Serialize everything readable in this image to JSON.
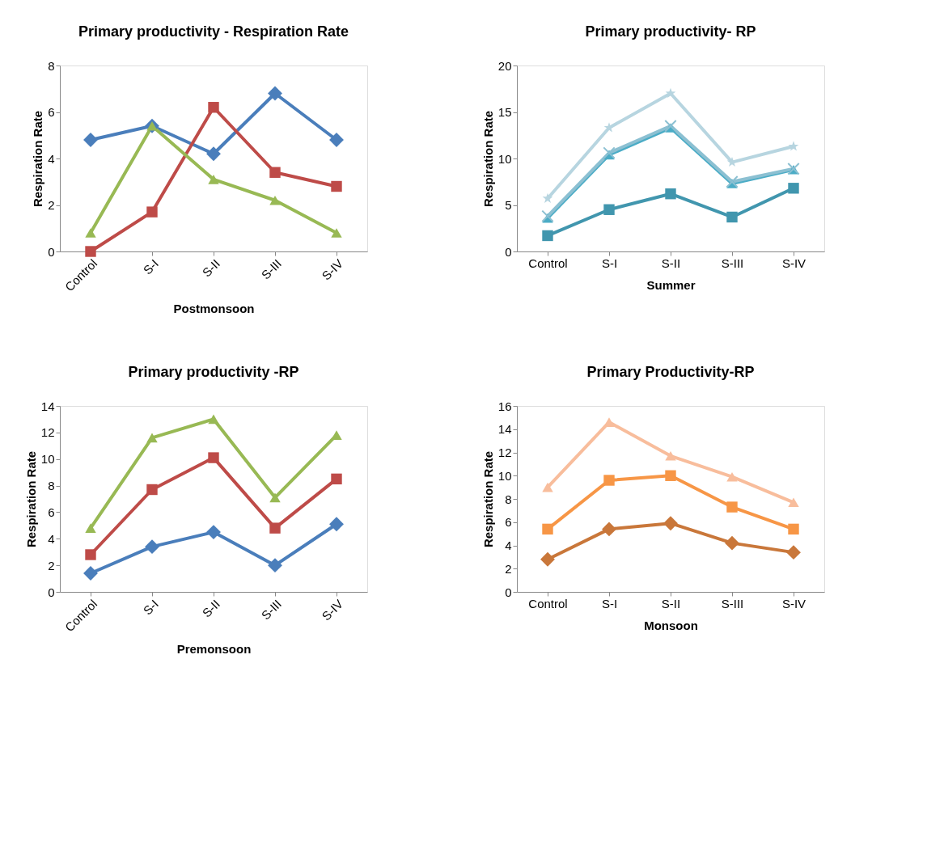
{
  "chart_data": [
    {
      "type": "line",
      "title": "Primary productivity - Respiration Rate",
      "xlabel": "Postmonsoon",
      "ylabel": "Respiration Rate",
      "categories": [
        "Control",
        "S-I",
        "S-II",
        "S-III",
        "S-IV"
      ],
      "ylim": [
        0,
        8
      ],
      "yticks": [
        0,
        2,
        4,
        6,
        8
      ],
      "grid": false,
      "legend": false,
      "line_style": "solid",
      "series": [
        {
          "color": "#4a7ebb",
          "marker": "diamond",
          "values": [
            4.8,
            5.4,
            4.2,
            6.8,
            4.8
          ]
        },
        {
          "color": "#be4b48",
          "marker": "square",
          "values": [
            0,
            1.7,
            6.2,
            3.4,
            2.8
          ]
        },
        {
          "color": "#98b954",
          "marker": "triangle",
          "values": [
            0.8,
            5.4,
            3.1,
            2.2,
            0.8
          ]
        }
      ]
    },
    {
      "type": "line",
      "title": "Primary productivity- RP",
      "xlabel": "Summer",
      "ylabel": "Respiration Rate",
      "categories": [
        "Control",
        "S-I",
        "S-II",
        "S-III",
        "S-IV"
      ],
      "ylim": [
        0,
        20
      ],
      "yticks": [
        0,
        5,
        10,
        15,
        20
      ],
      "grid": false,
      "legend": false,
      "line_style": "solid",
      "series": [
        {
          "color": "#4196ae",
          "marker": "square",
          "values": [
            1.7,
            4.5,
            6.2,
            3.7,
            6.8
          ]
        },
        {
          "color": "#4bacc6",
          "marker": "triangle",
          "values": [
            3.6,
            10.4,
            13.3,
            7.3,
            8.8
          ]
        },
        {
          "color": "#8cc0d2",
          "marker": "cross",
          "values": [
            3.8,
            10.6,
            13.5,
            7.5,
            8.9
          ]
        },
        {
          "color": "#b7d5e0",
          "marker": "star",
          "values": [
            5.7,
            13.3,
            17.0,
            9.6,
            11.3
          ]
        }
      ]
    },
    {
      "type": "line",
      "title": "Primary productivity -RP",
      "xlabel": "Premonsoon",
      "ylabel": "Respiration Rate",
      "categories": [
        "Control",
        "S-I",
        "S-II",
        "S-III",
        "S-IV"
      ],
      "ylim": [
        0,
        14
      ],
      "yticks": [
        0,
        2,
        4,
        6,
        8,
        10,
        12,
        14
      ],
      "grid": false,
      "legend": false,
      "line_style": "solid",
      "series": [
        {
          "color": "#4a7ebb",
          "marker": "diamond",
          "values": [
            1.4,
            3.4,
            4.5,
            2.0,
            5.1
          ]
        },
        {
          "color": "#be4b48",
          "marker": "square",
          "values": [
            2.8,
            7.7,
            10.1,
            4.8,
            8.5
          ]
        },
        {
          "color": "#98b954",
          "marker": "triangle",
          "values": [
            4.8,
            11.6,
            13.0,
            7.1,
            11.8
          ]
        }
      ]
    },
    {
      "type": "line",
      "title": "Primary Productivity-RP",
      "xlabel": "Monsoon",
      "ylabel": "Respiration Rate",
      "categories": [
        "Control",
        "S-I",
        "S-II",
        "S-III",
        "S-IV"
      ],
      "ylim": [
        0,
        16
      ],
      "yticks": [
        0,
        2,
        4,
        6,
        8,
        10,
        12,
        14,
        16
      ],
      "grid": false,
      "legend": false,
      "line_style": "solid",
      "series": [
        {
          "color": "#c9773a",
          "marker": "diamond",
          "values": [
            2.8,
            5.4,
            5.9,
            4.2,
            3.4
          ]
        },
        {
          "color": "#f79646",
          "marker": "square",
          "values": [
            5.4,
            9.6,
            10.0,
            7.3,
            5.4
          ]
        },
        {
          "color": "#f8bd9c",
          "marker": "triangle",
          "values": [
            9.0,
            14.6,
            11.7,
            9.9,
            7.7
          ]
        }
      ]
    }
  ]
}
